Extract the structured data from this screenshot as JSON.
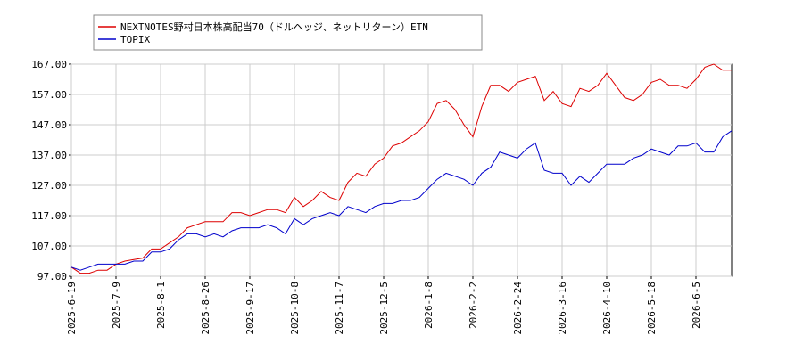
{
  "chart_data": {
    "type": "line",
    "categories": [
      "2025-6-19",
      null,
      null,
      null,
      null,
      "2025-7-9",
      null,
      null,
      null,
      null,
      "2025-8-1",
      null,
      null,
      null,
      null,
      "2025-8-26",
      null,
      null,
      null,
      null,
      "2025-9-17",
      null,
      null,
      null,
      null,
      "2025-10-8",
      null,
      null,
      null,
      null,
      "2025-11-7",
      null,
      null,
      null,
      null,
      "2025-12-5",
      null,
      null,
      null,
      null,
      "2026-1-8",
      null,
      null,
      null,
      null,
      "2026-2-2",
      null,
      null,
      null,
      null,
      "2026-2-24",
      null,
      null,
      null,
      null,
      "2026-3-16",
      null,
      null,
      null,
      null,
      "2026-4-10",
      null,
      null,
      null,
      null,
      "2026-5-18",
      null,
      null,
      null,
      null,
      "2026-6-5",
      null,
      null,
      null,
      null
    ],
    "series": [
      {
        "name": "NEXTNOTES野村日本株高配当70（ドルヘッジ、ネットリターン）ETN",
        "color": "#dd0000",
        "values": [
          100,
          98,
          98,
          99,
          99,
          101,
          102,
          102.5,
          103,
          106,
          106,
          108,
          110,
          113,
          114,
          115,
          115,
          115,
          118,
          118,
          117,
          118,
          119,
          119,
          118,
          123,
          120,
          122,
          125,
          123,
          122,
          128,
          131,
          130,
          134,
          136,
          140,
          141,
          143,
          145,
          148,
          154,
          155,
          152,
          147,
          143,
          153,
          160,
          160,
          158,
          161,
          162,
          163,
          155,
          158,
          154,
          153,
          159,
          158,
          160,
          164,
          160,
          156,
          155,
          157,
          161,
          162,
          160,
          160,
          159,
          162,
          166,
          167,
          165,
          165
        ]
      },
      {
        "name": "TOPIX",
        "color": "#0000cc",
        "values": [
          100,
          99,
          100,
          101,
          101,
          101,
          101,
          102,
          102,
          105,
          105,
          106,
          109,
          111,
          111,
          110,
          111,
          110,
          112,
          113,
          113,
          113,
          114,
          113,
          111,
          116,
          114,
          116,
          117,
          118,
          117,
          120,
          119,
          118,
          120,
          121,
          121,
          122,
          122,
          123,
          126,
          129,
          131,
          130,
          129,
          127,
          131,
          133,
          138,
          137,
          136,
          139,
          141,
          132,
          131,
          131,
          127,
          130,
          128,
          131,
          134,
          134,
          134,
          136,
          137,
          139,
          138,
          137,
          140,
          140,
          141,
          138,
          138,
          143,
          145
        ]
      }
    ],
    "ylim": [
      97,
      167
    ],
    "yticks": [
      {
        "value": 97,
        "label": "97.00"
      },
      {
        "value": 107,
        "label": "107.00"
      },
      {
        "value": 117,
        "label": "117.00"
      },
      {
        "value": 127,
        "label": "127.00"
      },
      {
        "value": 137,
        "label": "137.00"
      },
      {
        "value": 147,
        "label": "147.00"
      },
      {
        "value": 157,
        "label": "157.00"
      },
      {
        "value": 167,
        "label": "167.00"
      }
    ],
    "grid": true
  }
}
